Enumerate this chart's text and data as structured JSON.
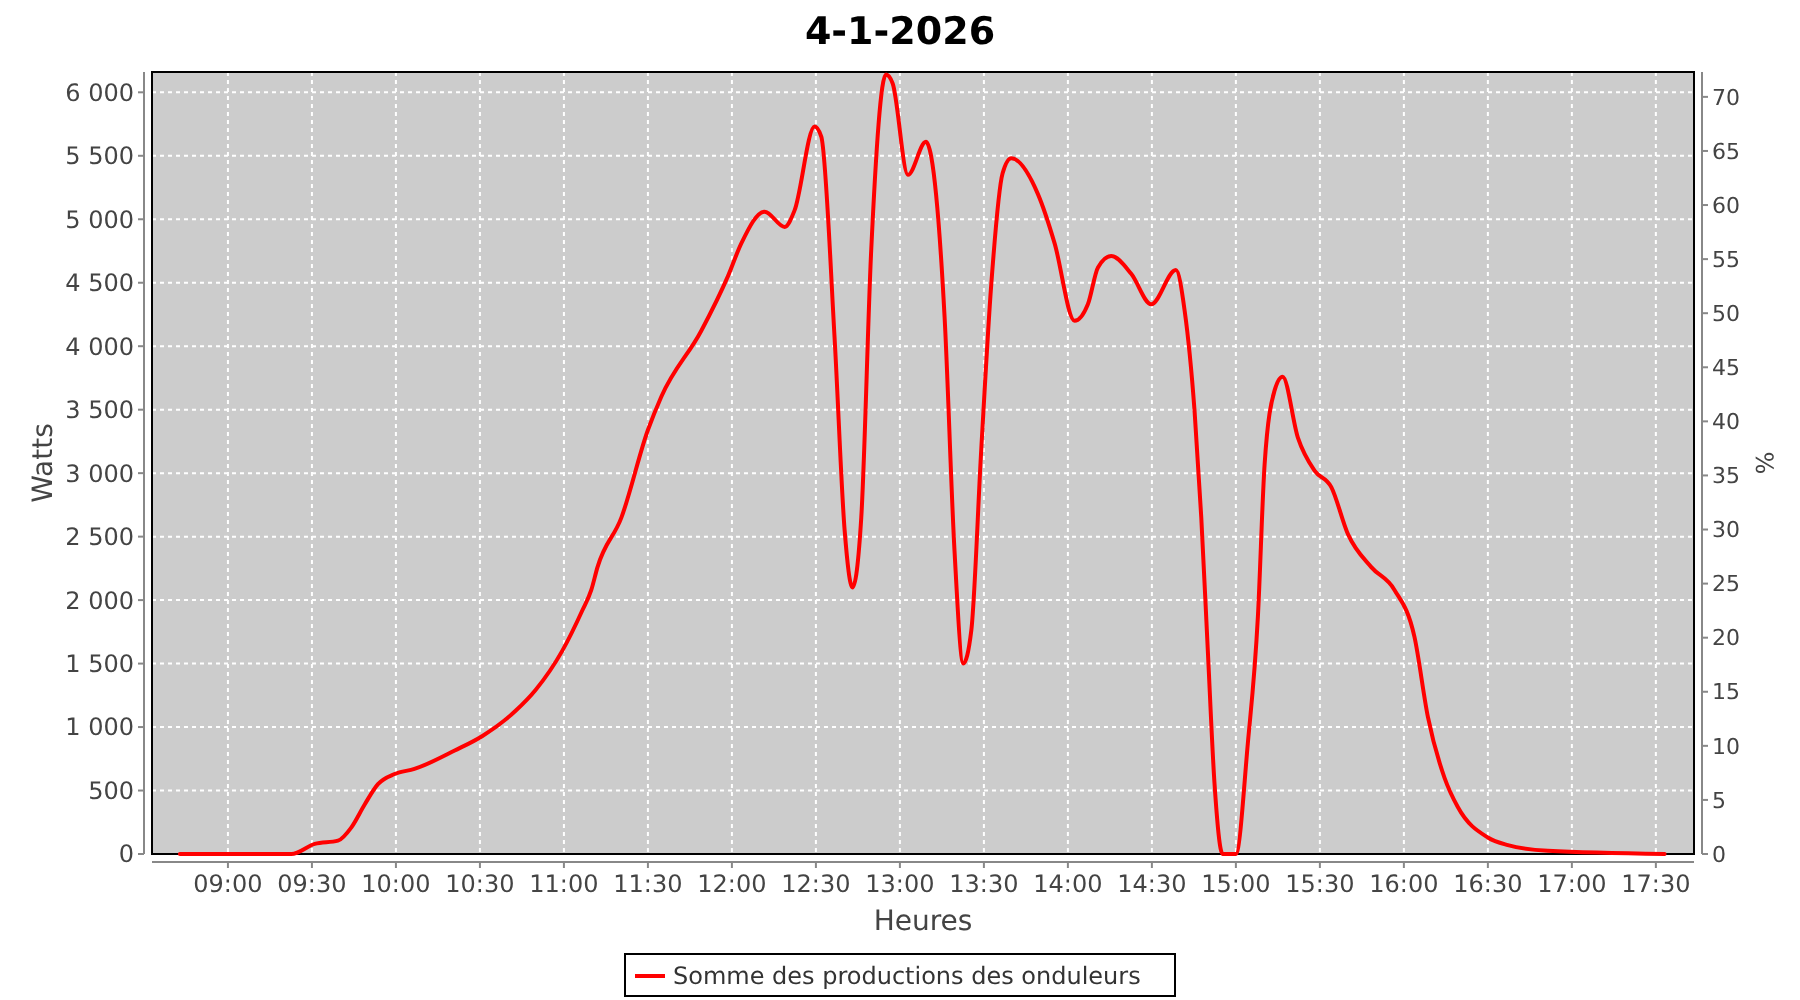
{
  "chart_data": {
    "type": "line",
    "title": "4-1-2026",
    "xlabel": "Heures",
    "ylabel": "Watts",
    "y2label": "%",
    "x": [
      8.714,
      9.377,
      9.517,
      9.655,
      9.735,
      9.814,
      9.893,
      9.992,
      10.11,
      10.35,
      10.515,
      10.714,
      10.83,
      10.99,
      11.11,
      11.163,
      11.2,
      11.342,
      11.5,
      11.579,
      11.817,
      11.976,
      12.056,
      12.195,
      12.314,
      12.373,
      12.492,
      12.532,
      12.611,
      12.671,
      12.718,
      12.77,
      12.829,
      12.917,
      12.957,
      13.048,
      13.155,
      13.187,
      13.266,
      13.325,
      13.377,
      13.425,
      13.484,
      13.544,
      13.611,
      13.663,
      13.821,
      13.921,
      14.04,
      14.119,
      14.179,
      14.258,
      14.377,
      14.496,
      14.643,
      14.695,
      14.754,
      14.794,
      14.833,
      14.873,
      14.921,
      15.0,
      15.071,
      15.131,
      15.171,
      15.23,
      15.278,
      15.369,
      15.468,
      15.568,
      15.667,
      15.806,
      15.944,
      16.063,
      16.143,
      16.242,
      16.321,
      16.5,
      16.619,
      16.857,
      17.552
    ],
    "series": [
      {
        "name": "Somme des productions des onduleurs",
        "color": "#ff0000",
        "values": [
          0,
          0,
          80,
          105,
          210,
          390,
          550,
          630,
          670,
          815,
          930,
          1130,
          1290,
          1600,
          1920,
          2080,
          2260,
          2650,
          3340,
          3600,
          4120,
          4550,
          4810,
          5060,
          4940,
          5070,
          5730,
          5650,
          4070,
          2550,
          2100,
          2650,
          4750,
          6140,
          6070,
          5350,
          5610,
          5490,
          4230,
          2390,
          1500,
          1760,
          3180,
          4490,
          5360,
          5480,
          5200,
          4810,
          4200,
          4330,
          4620,
          4710,
          4570,
          4330,
          4600,
          4280,
          3490,
          2650,
          1600,
          550,
          0,
          0,
          870,
          1870,
          3070,
          3650,
          3760,
          3280,
          3020,
          2890,
          2520,
          2260,
          2080,
          1710,
          1080,
          600,
          370,
          130,
          70,
          25,
          0
        ]
      }
    ],
    "xlim": [
      8.548,
      17.727
    ],
    "xticks": [
      {
        "value": 9,
        "label": "09:00"
      },
      {
        "value": 9.5,
        "label": "09:30"
      },
      {
        "value": 10,
        "label": "10:00"
      },
      {
        "value": 10.5,
        "label": "10:30"
      },
      {
        "value": 11,
        "label": "11:00"
      },
      {
        "value": 11.5,
        "label": "11:30"
      },
      {
        "value": 12,
        "label": "12:00"
      },
      {
        "value": 12.5,
        "label": "12:30"
      },
      {
        "value": 13,
        "label": "13:00"
      },
      {
        "value": 13.5,
        "label": "13:30"
      },
      {
        "value": 14,
        "label": "14:00"
      },
      {
        "value": 14.5,
        "label": "14:30"
      },
      {
        "value": 15,
        "label": "15:00"
      },
      {
        "value": 15.5,
        "label": "15:30"
      },
      {
        "value": 16,
        "label": "16:00"
      },
      {
        "value": 16.5,
        "label": "16:30"
      },
      {
        "value": 17,
        "label": "17:00"
      },
      {
        "value": 17.5,
        "label": "17:30"
      }
    ],
    "ylim": [
      0,
      6160
    ],
    "yticks": [
      0,
      500,
      {
        "value": 1000,
        "label": "1 000"
      },
      {
        "value": 1500,
        "label": "1 500"
      },
      {
        "value": 2000,
        "label": "2 000"
      },
      {
        "value": 2500,
        "label": "2 500"
      },
      {
        "value": 3000,
        "label": "3 000"
      },
      {
        "value": 3500,
        "label": "3 500"
      },
      {
        "value": 4000,
        "label": "4 000"
      },
      {
        "value": 4500,
        "label": "4 500"
      },
      {
        "value": 5000,
        "label": "5 000"
      },
      {
        "value": 5500,
        "label": "5 500"
      },
      {
        "value": 6000,
        "label": "6 000"
      }
    ],
    "y2lim": [
      0,
      72.3
    ],
    "y2ticks": [
      0,
      5,
      10,
      15,
      20,
      25,
      30,
      35,
      40,
      45,
      50,
      55,
      60,
      65,
      70
    ],
    "grid": true,
    "legend": "bottom",
    "line_style": "solid",
    "marker": "none"
  }
}
